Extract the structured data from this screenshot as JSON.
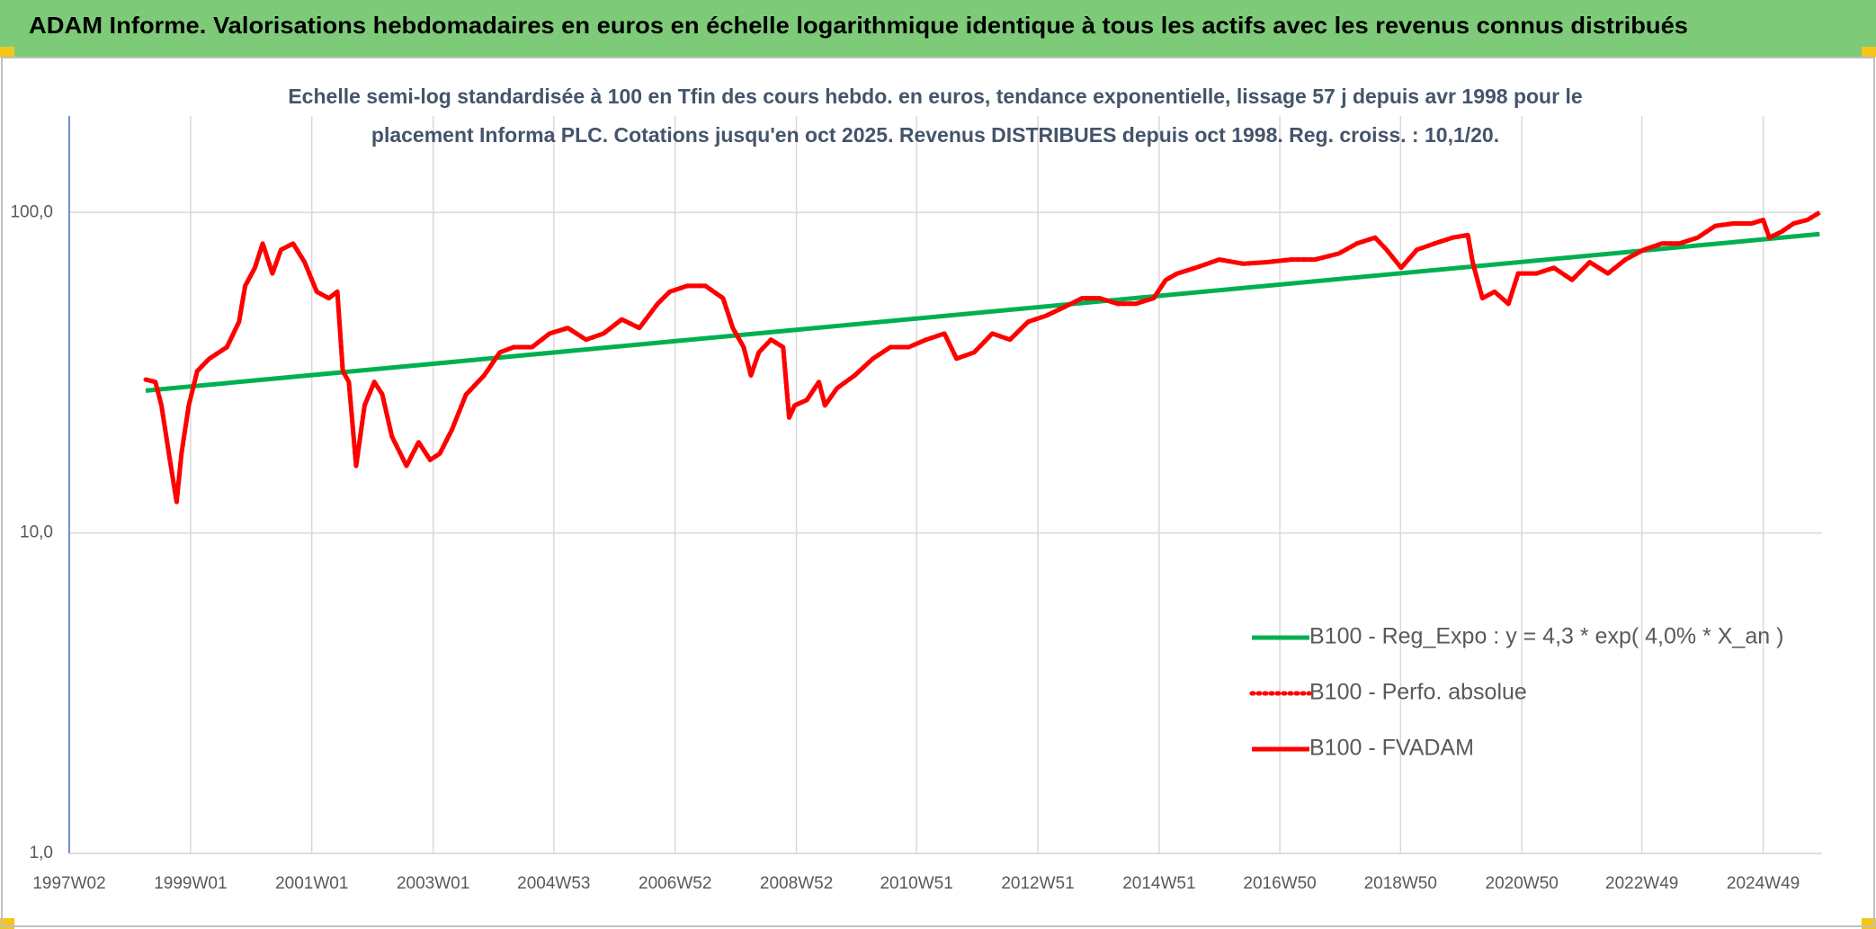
{
  "chart_data": {
    "type": "line",
    "title": "ADAM Informe. Valorisations hebdomadaires en euros en échelle logarithmique identique à tous les actifs avec les revenus connus distribués",
    "subtitle": "Echelle semi-log standardisée à 100 en Tfin des cours hebdo. en euros, tendance exponentielle, lissage 57 j depuis avr 1998 pour le placement Informa PLC. Cotations jusqu'en oct 2025. Revenus DISTRIBUES depuis oct 1998. Reg. croiss. : 10,1/20.",
    "log_y": true,
    "grid": true,
    "legend_position": "right",
    "xlim": [
      1997.0,
      2025.9
    ],
    "xticks": [
      {
        "value": 1997.0,
        "label": "1997W02"
      },
      {
        "value": 1999.0,
        "label": "1999W01"
      },
      {
        "value": 2001.0,
        "label": "2001W01"
      },
      {
        "value": 2003.0,
        "label": "2003W01"
      },
      {
        "value": 2004.99,
        "label": "2004W53"
      },
      {
        "value": 2006.99,
        "label": "2006W52"
      },
      {
        "value": 2008.99,
        "label": "2008W52"
      },
      {
        "value": 2010.97,
        "label": "2010W51"
      },
      {
        "value": 2012.97,
        "label": "2012W51"
      },
      {
        "value": 2014.97,
        "label": "2014W51"
      },
      {
        "value": 2016.96,
        "label": "2016W50"
      },
      {
        "value": 2018.95,
        "label": "2018W50"
      },
      {
        "value": 2020.95,
        "label": "2020W50"
      },
      {
        "value": 2022.93,
        "label": "2022W49"
      },
      {
        "value": 2024.93,
        "label": "2024W49"
      }
    ],
    "ylim": [
      1,
      200
    ],
    "yticks": [
      {
        "value": 1,
        "label": "1,0"
      },
      {
        "value": 10,
        "label": "10,0"
      },
      {
        "value": 100,
        "label": "100,0"
      }
    ],
    "series": [
      {
        "name": "B100 - Reg_Expo : y = 4,3 * exp( 4,0% *  X_an )",
        "color": "#00b050",
        "line_style": "solid",
        "x": [
          1998.26,
          2025.86
        ],
        "values": [
          27.8,
          85.6
        ]
      },
      {
        "name": "B100 - Perfo. absolue",
        "color": "#ff0000",
        "line_style": "dotted",
        "x": [
          1998.26,
          1998.42,
          1998.52,
          1998.66,
          1998.77,
          1998.85,
          1998.97,
          1999.11,
          1999.31,
          1999.6,
          1999.8,
          1999.9,
          2000.06,
          2000.19,
          2000.35,
          2000.49,
          2000.69,
          2000.88,
          2001.08,
          2001.28,
          2001.42,
          2001.51,
          2001.61,
          2001.73,
          2001.87,
          2002.03,
          2002.16,
          2002.32,
          2002.56,
          2002.76,
          2002.95,
          2003.11,
          2003.31,
          2003.54,
          2003.84,
          2004.1,
          2004.33,
          2004.63,
          2004.92,
          2005.22,
          2005.52,
          2005.81,
          2006.11,
          2006.4,
          2006.7,
          2006.9,
          2007.19,
          2007.49,
          2007.78,
          2007.94,
          2008.12,
          2008.24,
          2008.37,
          2008.57,
          2008.77,
          2008.87,
          2008.96,
          2009.16,
          2009.36,
          2009.46,
          2009.66,
          2009.95,
          2010.25,
          2010.54,
          2010.84,
          2011.13,
          2011.43,
          2011.63,
          2011.92,
          2012.22,
          2012.51,
          2012.81,
          2013.1,
          2013.4,
          2013.7,
          2013.99,
          2014.29,
          2014.58,
          2014.88,
          2015.08,
          2015.27,
          2015.57,
          2015.96,
          2016.36,
          2016.75,
          2017.15,
          2017.54,
          2017.93,
          2018.23,
          2018.53,
          2018.72,
          2018.96,
          2019.22,
          2019.51,
          2019.81,
          2020.06,
          2020.14,
          2020.3,
          2020.5,
          2020.73,
          2020.89,
          2021.19,
          2021.48,
          2021.78,
          2022.07,
          2022.37,
          2022.66,
          2022.96,
          2023.26,
          2023.55,
          2023.85,
          2024.14,
          2024.44,
          2024.74,
          2024.93,
          2025.03,
          2025.23,
          2025.43,
          2025.66,
          2025.86
        ],
        "values": [
          30.1,
          29.6,
          25,
          16.9,
          12.5,
          17.7,
          25,
          32,
          35,
          38,
          45.6,
          59,
          67.2,
          80,
          64.5,
          76.5,
          80,
          70,
          56.6,
          54,
          56.6,
          32,
          29.6,
          16.2,
          25,
          29.6,
          27.1,
          20,
          16.2,
          19.2,
          16.9,
          17.7,
          21,
          27,
          31,
          36.6,
          38,
          38,
          41.9,
          43.6,
          40.1,
          41.9,
          46.4,
          43.6,
          51.9,
          56.6,
          59,
          59,
          54,
          43.6,
          38,
          31,
          36.6,
          40.1,
          38,
          22.9,
          25,
          26,
          29.6,
          25,
          28.3,
          31,
          35,
          38,
          38,
          40.1,
          41.9,
          35,
          36.6,
          41.9,
          40.1,
          45.6,
          47.6,
          50.6,
          54,
          54,
          51.9,
          51.9,
          54,
          61.6,
          64.5,
          67.2,
          71.3,
          69.2,
          70,
          71.3,
          71.3,
          74.4,
          80,
          83.5,
          76.5,
          67.2,
          76.5,
          80,
          83.5,
          85,
          70,
          54,
          56.6,
          51.9,
          64.5,
          64.5,
          67.2,
          61.6,
          70,
          64.5,
          71.3,
          76.5,
          80,
          80,
          83.5,
          90.8,
          92.4,
          92.4,
          94.8,
          83.5,
          87,
          92.4,
          94.8,
          100
        ]
      },
      {
        "name": "B100 - FVADAM",
        "color": "#ff0000",
        "line_style": "solid",
        "x": [
          1998.26,
          1998.42,
          1998.52,
          1998.66,
          1998.77,
          1998.85,
          1998.97,
          1999.11,
          1999.31,
          1999.6,
          1999.8,
          1999.9,
          2000.06,
          2000.19,
          2000.35,
          2000.49,
          2000.69,
          2000.88,
          2001.08,
          2001.28,
          2001.42,
          2001.51,
          2001.61,
          2001.73,
          2001.87,
          2002.03,
          2002.16,
          2002.32,
          2002.56,
          2002.76,
          2002.95,
          2003.11,
          2003.31,
          2003.54,
          2003.84,
          2004.1,
          2004.33,
          2004.63,
          2004.92,
          2005.22,
          2005.52,
          2005.81,
          2006.11,
          2006.4,
          2006.7,
          2006.9,
          2007.19,
          2007.49,
          2007.78,
          2007.94,
          2008.12,
          2008.24,
          2008.37,
          2008.57,
          2008.77,
          2008.87,
          2008.96,
          2009.16,
          2009.36,
          2009.46,
          2009.66,
          2009.95,
          2010.25,
          2010.54,
          2010.84,
          2011.13,
          2011.43,
          2011.63,
          2011.92,
          2012.22,
          2012.51,
          2012.81,
          2013.1,
          2013.4,
          2013.7,
          2013.99,
          2014.29,
          2014.58,
          2014.88,
          2015.08,
          2015.27,
          2015.57,
          2015.96,
          2016.36,
          2016.75,
          2017.15,
          2017.54,
          2017.93,
          2018.23,
          2018.53,
          2018.72,
          2018.96,
          2019.22,
          2019.51,
          2019.81,
          2020.06,
          2020.14,
          2020.3,
          2020.5,
          2020.73,
          2020.89,
          2021.19,
          2021.48,
          2021.78,
          2022.07,
          2022.37,
          2022.66,
          2022.96,
          2023.26,
          2023.55,
          2023.85,
          2024.14,
          2024.44,
          2024.74,
          2024.93,
          2025.03,
          2025.23,
          2025.43,
          2025.66,
          2025.86
        ],
        "values": [
          30.1,
          29.6,
          25,
          16.9,
          12.5,
          17.7,
          25,
          32,
          35,
          38,
          45.6,
          59,
          67.2,
          80,
          64.5,
          76.5,
          80,
          70,
          56.6,
          54,
          56.6,
          32,
          29.6,
          16.2,
          25,
          29.6,
          27.1,
          20,
          16.2,
          19.2,
          16.9,
          17.7,
          21,
          27,
          31,
          36.6,
          38,
          38,
          41.9,
          43.6,
          40.1,
          41.9,
          46.4,
          43.6,
          51.9,
          56.6,
          59,
          59,
          54,
          43.6,
          38,
          31,
          36.6,
          40.1,
          38,
          22.9,
          25,
          26,
          29.6,
          25,
          28.3,
          31,
          35,
          38,
          38,
          40.1,
          41.9,
          35,
          36.6,
          41.9,
          40.1,
          45.6,
          47.6,
          50.6,
          54,
          54,
          51.9,
          51.9,
          54,
          61.6,
          64.5,
          67.2,
          71.3,
          69.2,
          70,
          71.3,
          71.3,
          74.4,
          80,
          83.5,
          76.5,
          67.2,
          76.5,
          80,
          83.5,
          85,
          70,
          54,
          56.6,
          51.9,
          64.5,
          64.5,
          67.2,
          61.6,
          70,
          64.5,
          71.3,
          76.5,
          80,
          80,
          83.5,
          90.8,
          92.4,
          92.4,
          94.8,
          83.5,
          87,
          92.4,
          94.8,
          100
        ]
      }
    ]
  }
}
